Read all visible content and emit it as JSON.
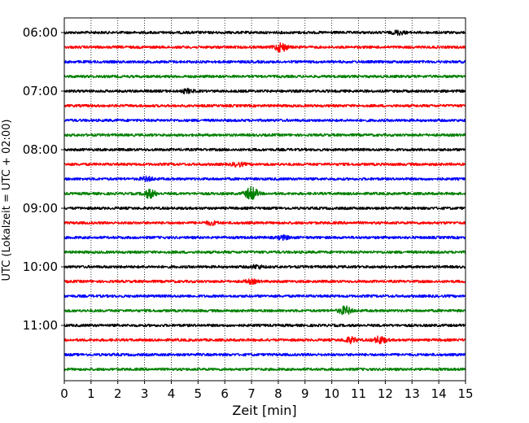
{
  "chart_data": {
    "type": "line",
    "title": "",
    "xlabel": "Zeit  [min]",
    "ylabel": "UTC (Lokalzeit = UTC + 02:00)",
    "xlim": [
      0,
      15
    ],
    "x_ticks": [
      "0",
      "1",
      "2",
      "3",
      "4",
      "5",
      "6",
      "7",
      "8",
      "9",
      "10",
      "11",
      "12",
      "13",
      "14",
      "15"
    ],
    "y_ticks": [
      "06:00",
      "07:00",
      "08:00",
      "09:00",
      "10:00",
      "11:00"
    ],
    "grid": "vertical dotted",
    "legend": "none",
    "trace_interval_minutes": 15,
    "colors": [
      "#000000",
      "#ff0000",
      "#0000ff",
      "#008000"
    ],
    "traces": [
      {
        "start": "06:00",
        "color": "#000000",
        "events": [
          {
            "t": 12.5,
            "amp": 1.4
          }
        ]
      },
      {
        "start": "06:15",
        "color": "#ff0000",
        "events": [
          {
            "t": 8.1,
            "amp": 3.2
          }
        ]
      },
      {
        "start": "06:30",
        "color": "#0000ff",
        "events": []
      },
      {
        "start": "06:45",
        "color": "#008000",
        "events": []
      },
      {
        "start": "07:00",
        "color": "#000000",
        "events": [
          {
            "t": 4.6,
            "amp": 1.3
          }
        ]
      },
      {
        "start": "07:15",
        "color": "#ff0000",
        "events": []
      },
      {
        "start": "07:30",
        "color": "#0000ff",
        "events": []
      },
      {
        "start": "07:45",
        "color": "#008000",
        "events": []
      },
      {
        "start": "08:00",
        "color": "#000000",
        "events": []
      },
      {
        "start": "08:15",
        "color": "#ff0000",
        "events": [
          {
            "t": 6.5,
            "amp": 1.3
          }
        ]
      },
      {
        "start": "08:30",
        "color": "#0000ff",
        "events": [
          {
            "t": 3.1,
            "amp": 1.4
          }
        ]
      },
      {
        "start": "08:45",
        "color": "#008000",
        "events": [
          {
            "t": 3.2,
            "amp": 3.0
          },
          {
            "t": 7.0,
            "amp": 4.8
          }
        ]
      },
      {
        "start": "09:00",
        "color": "#000000",
        "events": []
      },
      {
        "start": "09:15",
        "color": "#ff0000",
        "events": [
          {
            "t": 5.5,
            "amp": 1.2
          }
        ]
      },
      {
        "start": "09:30",
        "color": "#0000ff",
        "events": [
          {
            "t": 8.2,
            "amp": 1.3
          }
        ]
      },
      {
        "start": "09:45",
        "color": "#008000",
        "events": []
      },
      {
        "start": "10:00",
        "color": "#000000",
        "events": [
          {
            "t": 7.2,
            "amp": 1.2
          }
        ]
      },
      {
        "start": "10:15",
        "color": "#ff0000",
        "events": [
          {
            "t": 7.0,
            "amp": 1.3
          }
        ]
      },
      {
        "start": "10:30",
        "color": "#0000ff",
        "events": []
      },
      {
        "start": "10:45",
        "color": "#008000",
        "events": [
          {
            "t": 10.5,
            "amp": 3.0
          }
        ]
      },
      {
        "start": "11:00",
        "color": "#000000",
        "events": []
      },
      {
        "start": "11:15",
        "color": "#ff0000",
        "events": [
          {
            "t": 10.7,
            "amp": 2.0
          },
          {
            "t": 11.8,
            "amp": 2.6
          }
        ]
      },
      {
        "start": "11:30",
        "color": "#0000ff",
        "events": []
      },
      {
        "start": "11:45",
        "color": "#008000",
        "events": []
      }
    ]
  }
}
